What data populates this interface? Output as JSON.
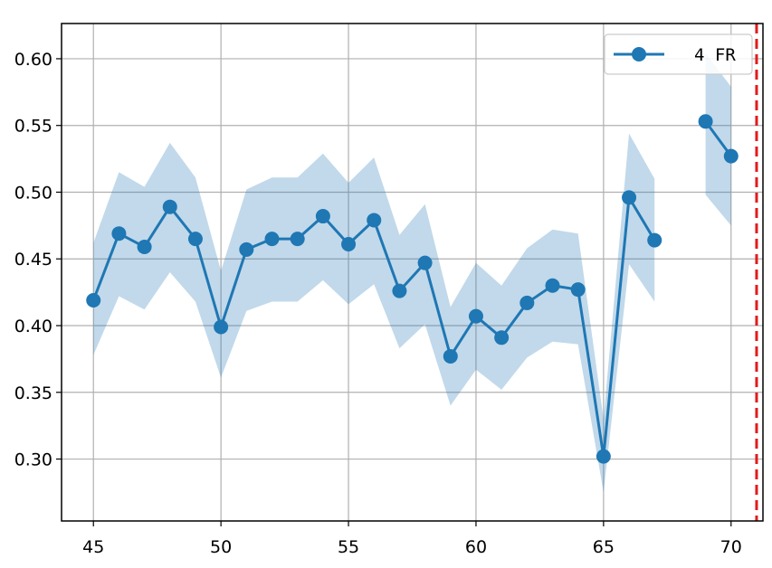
{
  "chart_data": {
    "type": "line",
    "title": "",
    "xlabel": "",
    "ylabel": "",
    "xlim": [
      43.75,
      71.25
    ],
    "ylim": [
      0.2536,
      0.6264
    ],
    "x_ticks": [
      45,
      50,
      55,
      60,
      65,
      70
    ],
    "x_tick_labels": [
      "45",
      "50",
      "55",
      "60",
      "65",
      "70"
    ],
    "y_ticks": [
      0.3,
      0.35,
      0.4,
      0.45,
      0.5,
      0.55,
      0.6
    ],
    "y_tick_labels": [
      "0.30",
      "0.35",
      "0.40",
      "0.45",
      "0.50",
      "0.55",
      "0.60"
    ],
    "grid": true,
    "legend_position": "top-right",
    "series": [
      {
        "name": "4 FR",
        "color": "#1f77b4",
        "band_color": "#1f77b4",
        "band_opacity": 0.28,
        "segments": [
          {
            "x": [
              45,
              46,
              47,
              48,
              49,
              50,
              51,
              52,
              53,
              54,
              55,
              56,
              57,
              58,
              59,
              60,
              61,
              62,
              63,
              64,
              65,
              66,
              67
            ],
            "y": [
              0.419,
              0.469,
              0.459,
              0.489,
              0.465,
              0.399,
              0.457,
              0.465,
              0.465,
              0.482,
              0.461,
              0.479,
              0.426,
              0.447,
              0.377,
              0.407,
              0.391,
              0.417,
              0.43,
              0.427,
              0.302,
              0.496,
              0.464
            ],
            "lower": [
              0.378,
              0.422,
              0.412,
              0.44,
              0.418,
              0.361,
              0.411,
              0.418,
              0.418,
              0.434,
              0.416,
              0.431,
              0.383,
              0.401,
              0.34,
              0.367,
              0.352,
              0.376,
              0.388,
              0.386,
              0.275,
              0.446,
              0.418
            ],
            "upper": [
              0.462,
              0.515,
              0.504,
              0.537,
              0.511,
              0.441,
              0.502,
              0.511,
              0.511,
              0.529,
              0.507,
              0.526,
              0.468,
              0.491,
              0.414,
              0.447,
              0.43,
              0.458,
              0.472,
              0.469,
              0.33,
              0.544,
              0.51
            ]
          },
          {
            "x": [
              69,
              70
            ],
            "y": [
              0.553,
              0.527
            ],
            "lower": [
              0.498,
              0.475
            ],
            "upper": [
              0.604,
              0.579
            ]
          }
        ]
      }
    ],
    "reference_line": {
      "x": 71,
      "color": "#e31a1c",
      "style": "dashed"
    }
  }
}
